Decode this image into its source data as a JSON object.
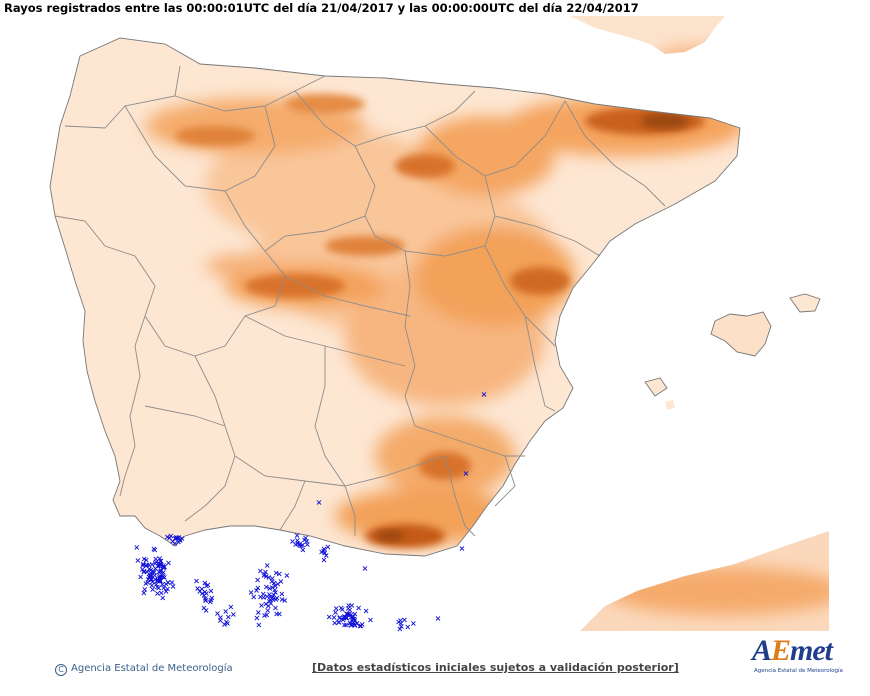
{
  "header": {
    "title": "Rayos registrados entre las 00:00:01UTC del día 21/04/2017 y las 00:00:00UTC del día 22/04/2017"
  },
  "footer": {
    "credit_symbol": "C",
    "credit": "Agencia Estatal de Meteorología",
    "disclaimer": "[Datos estadísticos iniciales sujetos a validación posterior]"
  },
  "logo": {
    "word_a": "A",
    "word_e": "E",
    "word_met": "met",
    "subtitle": "Agencia Estatal de Meteorología"
  },
  "colors": {
    "sea": "#ffffff",
    "land_low": "#fde6d2",
    "land_mid": "#f7b27a",
    "land_high": "#e8802c",
    "peaks": "#8a3f0a",
    "borders": "#8c8c8c",
    "lightning": "#1010d8"
  },
  "lightning_marker": "×"
}
